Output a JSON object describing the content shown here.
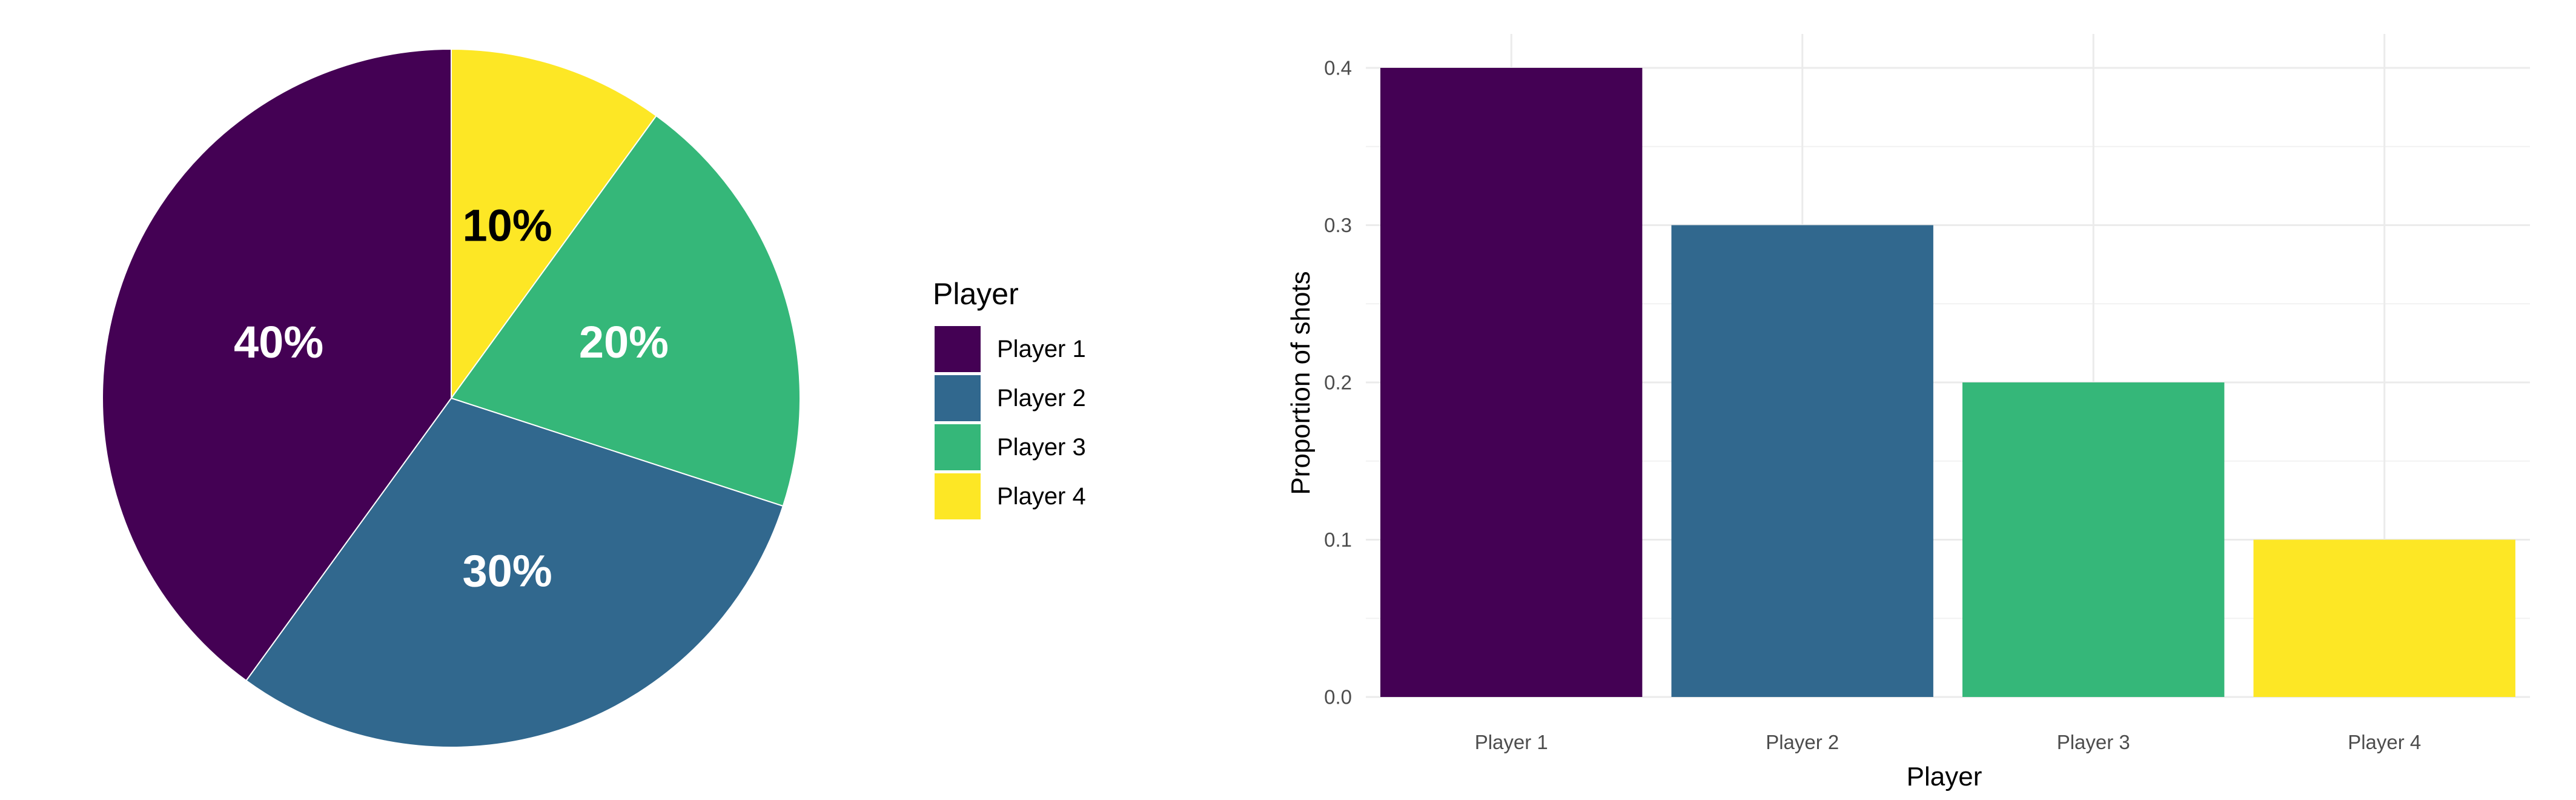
{
  "chart_data": [
    {
      "type": "pie",
      "categories": [
        "Player 1",
        "Player 2",
        "Player 3",
        "Player 4"
      ],
      "values": [
        0.4,
        0.3,
        0.2,
        0.1
      ],
      "slice_labels": [
        "40%",
        "30%",
        "20%",
        "10%"
      ],
      "colors": [
        "#440154",
        "#31688E",
        "#35B779",
        "#FDE725"
      ],
      "label_colors": [
        "#ffffff",
        "#ffffff",
        "#ffffff",
        "#000000"
      ],
      "legend_title": "Player",
      "legend_position": "right"
    },
    {
      "type": "bar",
      "categories": [
        "Player 1",
        "Player 2",
        "Player 3",
        "Player 4"
      ],
      "values": [
        0.4,
        0.3,
        0.2,
        0.1
      ],
      "colors": [
        "#440154",
        "#31688E",
        "#35B779",
        "#FDE725"
      ],
      "xlabel": "Player",
      "ylabel": "Proportion of shots",
      "ylim": [
        0,
        0.4
      ],
      "yticks": [
        0.0,
        0.1,
        0.2,
        0.3,
        0.4
      ],
      "ytick_labels": [
        "0.0",
        "0.1",
        "0.2",
        "0.3",
        "0.4"
      ],
      "grid": true
    }
  ]
}
